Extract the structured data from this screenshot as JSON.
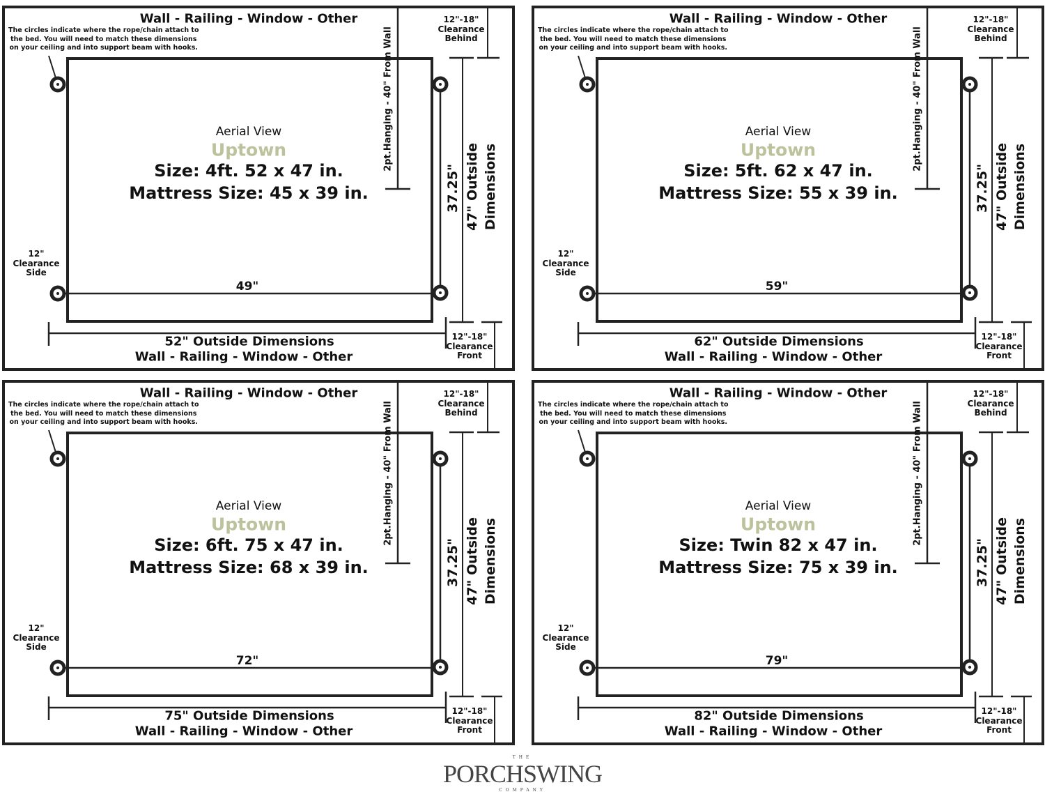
{
  "common": {
    "top_label": "Wall - Railing - Window - Other",
    "bottom_label": "Wall - Railing - Window - Other",
    "note": [
      "The circles indicate where the rope/chain attach to",
      "the bed. You will need to match these dimensions",
      "on your ceiling and into support beam with hooks."
    ],
    "hanging_label": "2pt.Hanging - 40\" From Wall",
    "clearance_behind": [
      "12\"-18\"",
      "Clearance",
      "Behind"
    ],
    "clearance_front": [
      "12\"-18\"",
      "Clearance",
      "Front"
    ],
    "clearance_side": [
      "12\"",
      "Clearance",
      "Side"
    ],
    "aerial_view": "Aerial View",
    "model": "Uptown",
    "inner_depth": "37.25\"",
    "outside_depth": [
      "47\" Outside",
      "Dimensions"
    ]
  },
  "colors": {
    "line": "#222222",
    "model": "#bcc39c"
  },
  "panels": [
    {
      "size": "Size: 4ft. 52 x 47 in.",
      "mattress": "Mattress Size: 45 x 39 in.",
      "inner_width": "49\"",
      "outside_width": "52\" Outside Dimensions"
    },
    {
      "size": "Size: 5ft. 62 x 47 in.",
      "mattress": "Mattress Size: 55 x 39 in.",
      "inner_width": "59\"",
      "outside_width": "62\" Outside Dimensions"
    },
    {
      "size": "Size: 6ft. 75 x 47 in.",
      "mattress": "Mattress Size: 68 x 39 in.",
      "inner_width": "72\"",
      "outside_width": "75\" Outside Dimensions"
    },
    {
      "size": "Size: Twin 82 x 47 in.",
      "mattress": "Mattress Size: 75 x 39 in.",
      "inner_width": "79\"",
      "outside_width": "82\" Outside Dimensions"
    }
  ],
  "logo": {
    "the": "THE",
    "name": "PORCHSWING",
    "company": "COMPANY"
  }
}
